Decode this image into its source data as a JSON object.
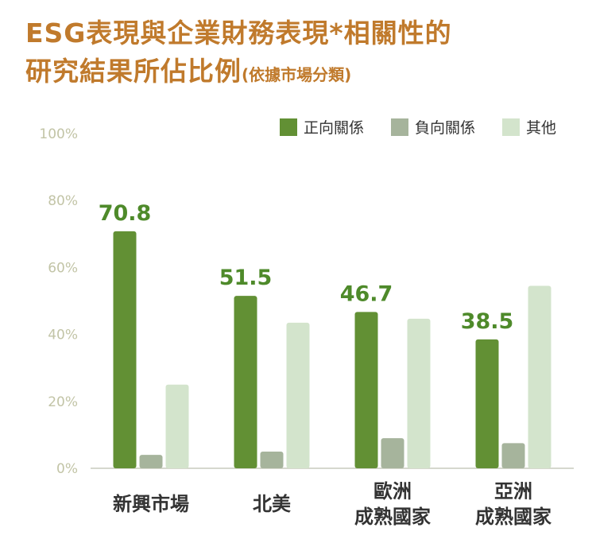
{
  "title_line1": "ESG表現與企業財務表現*相關性的",
  "title_line2": "研究結果所佔比例",
  "title_sub": "(依據市場分類)",
  "chart_data": {
    "type": "bar",
    "title": "ESG表現與企業財務表現*相關性的研究結果所佔比例(依據市場分類)",
    "categories": [
      [
        "新興市場"
      ],
      [
        "北美"
      ],
      [
        "歐洲",
        "成熟國家"
      ],
      [
        "亞洲",
        "成熟國家"
      ]
    ],
    "series": [
      {
        "name": "正向關係",
        "color": "#629034",
        "values": [
          70.8,
          51.5,
          46.7,
          38.5
        ],
        "labels": [
          "70.8",
          "51.5",
          "46.7",
          "38.5"
        ]
      },
      {
        "name": "負向關係",
        "color": "#a6b49c",
        "values": [
          4,
          5,
          9,
          7.5
        ]
      },
      {
        "name": "其他",
        "color": "#d3e4cc",
        "values": [
          25,
          43.5,
          44.7,
          54.5
        ]
      }
    ],
    "yticks": [
      "0%",
      "20%",
      "40%",
      "60%",
      "80%",
      "100%"
    ],
    "ylim": [
      0,
      100
    ],
    "legend_position": "top-right",
    "grid": false
  }
}
